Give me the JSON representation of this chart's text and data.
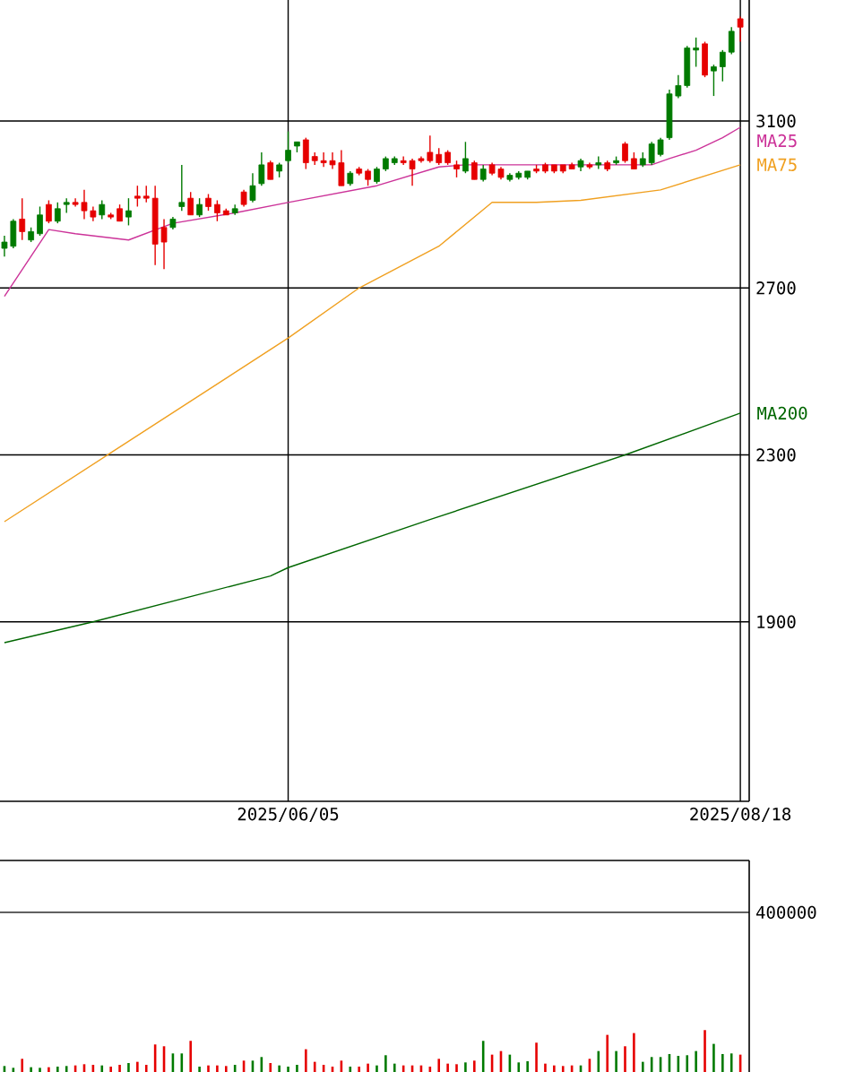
{
  "chart_data": [
    {
      "type": "candlestick",
      "categories": [
        null,
        null,
        null,
        null,
        null,
        null,
        null,
        null,
        null,
        null,
        null,
        null,
        null,
        null,
        null,
        null,
        null,
        null,
        null,
        null,
        null,
        null,
        null,
        null,
        null,
        null,
        null,
        null,
        null,
        null,
        null,
        null,
        "2025/06/05",
        null,
        null,
        null,
        null,
        null,
        null,
        null,
        null,
        null,
        null,
        null,
        null,
        null,
        null,
        null,
        null,
        null,
        null,
        null,
        null,
        null,
        null,
        null,
        null,
        null,
        null,
        null,
        null,
        null,
        null,
        null,
        null,
        null,
        null,
        null,
        null,
        null,
        null,
        null,
        null,
        null,
        null,
        null,
        null,
        null,
        null,
        null,
        null,
        null,
        null,
        "2025/08/18"
      ],
      "ohlc": [
        [
          2795,
          2825,
          2775,
          2810
        ],
        [
          2800,
          2865,
          2795,
          2860
        ],
        [
          2865,
          2915,
          2815,
          2835
        ],
        [
          2815,
          2845,
          2810,
          2835
        ],
        [
          2830,
          2895,
          2825,
          2875
        ],
        [
          2900,
          2910,
          2855,
          2860
        ],
        [
          2860,
          2905,
          2855,
          2890
        ],
        [
          2900,
          2915,
          2880,
          2905
        ],
        [
          2905,
          2915,
          2895,
          2900
        ],
        [
          2905,
          2935,
          2865,
          2885
        ],
        [
          2885,
          2895,
          2860,
          2870
        ],
        [
          2875,
          2910,
          2865,
          2900
        ],
        [
          2875,
          2880,
          2865,
          2870
        ],
        [
          2890,
          2900,
          2860,
          2860
        ],
        [
          2870,
          2915,
          2850,
          2885
        ],
        [
          2920,
          2945,
          2895,
          2915
        ],
        [
          2920,
          2945,
          2905,
          2915
        ],
        [
          2915,
          2945,
          2755,
          2805
        ],
        [
          2845,
          2865,
          2745,
          2810
        ],
        [
          2845,
          2870,
          2840,
          2865
        ],
        [
          2895,
          2995,
          2885,
          2905
        ],
        [
          2915,
          2930,
          2875,
          2875
        ],
        [
          2875,
          2915,
          2870,
          2900
        ],
        [
          2915,
          2925,
          2885,
          2895
        ],
        [
          2900,
          2910,
          2860,
          2880
        ],
        [
          2885,
          2890,
          2875,
          2875
        ],
        [
          2880,
          2900,
          2875,
          2890
        ],
        [
          2930,
          2935,
          2895,
          2900
        ],
        [
          2910,
          2975,
          2905,
          2945
        ],
        [
          2950,
          3025,
          2945,
          2995
        ],
        [
          3000,
          3005,
          2960,
          2960
        ],
        [
          2980,
          3000,
          2965,
          2995
        ],
        [
          3005,
          3075,
          3000,
          3030
        ],
        [
          3040,
          3050,
          3025,
          3050
        ],
        [
          3055,
          3060,
          2985,
          3000
        ],
        [
          3015,
          3025,
          2995,
          3005
        ],
        [
          3005,
          3025,
          2990,
          3000
        ],
        [
          3005,
          3025,
          2985,
          2995
        ],
        [
          3000,
          3030,
          2945,
          2945
        ],
        [
          2950,
          2980,
          2945,
          2975
        ],
        [
          2985,
          2990,
          2970,
          2975
        ],
        [
          2980,
          2985,
          2945,
          2960
        ],
        [
          2955,
          2990,
          2950,
          2985
        ],
        [
          2985,
          3015,
          2980,
          3010
        ],
        [
          3000,
          3015,
          2995,
          3010
        ],
        [
          3005,
          3015,
          2995,
          3000
        ],
        [
          3005,
          3010,
          2945,
          2985
        ],
        [
          3010,
          3015,
          3000,
          3005
        ],
        [
          3025,
          3065,
          3000,
          3005
        ],
        [
          3020,
          3035,
          2995,
          3000
        ],
        [
          3025,
          3030,
          2995,
          3000
        ],
        [
          2995,
          3005,
          2965,
          2985
        ],
        [
          2980,
          3050,
          2975,
          3010
        ],
        [
          3000,
          3005,
          2960,
          2960
        ],
        [
          2960,
          2995,
          2955,
          2985
        ],
        [
          2995,
          3000,
          2970,
          2975
        ],
        [
          2985,
          2990,
          2960,
          2965
        ],
        [
          2960,
          2975,
          2955,
          2970
        ],
        [
          2965,
          2980,
          2960,
          2975
        ],
        [
          2965,
          2980,
          2960,
          2980
        ],
        [
          2985,
          2995,
          2975,
          2980
        ],
        [
          2995,
          3000,
          2975,
          2980
        ],
        [
          2995,
          2995,
          2975,
          2980
        ],
        [
          2995,
          2995,
          2975,
          2980
        ],
        [
          2995,
          3000,
          2985,
          2985
        ],
        [
          2990,
          3010,
          2980,
          3005
        ],
        [
          2995,
          3000,
          2985,
          2990
        ],
        [
          2995,
          3015,
          2985,
          3000
        ],
        [
          3000,
          3005,
          2980,
          2985
        ],
        [
          3000,
          3015,
          2995,
          3005
        ],
        [
          3045,
          3050,
          3000,
          3005
        ],
        [
          3010,
          3025,
          2985,
          2985
        ],
        [
          2995,
          3025,
          2990,
          3010
        ],
        [
          3000,
          3050,
          2995,
          3045
        ],
        [
          3020,
          3060,
          3015,
          3055
        ],
        [
          3060,
          3175,
          3055,
          3165
        ],
        [
          3160,
          3210,
          3155,
          3185
        ],
        [
          3185,
          3280,
          3180,
          3275
        ],
        [
          3270,
          3300,
          3230,
          3275
        ],
        [
          3285,
          3290,
          3205,
          3210
        ],
        [
          3220,
          3235,
          3160,
          3230
        ],
        [
          3230,
          3270,
          3195,
          3265
        ],
        [
          3265,
          3325,
          3260,
          3315
        ],
        [
          3345,
          3350,
          3290,
          3325
        ]
      ],
      "colors": [
        "#007a00",
        "#007a00",
        "#e60000",
        "#007a00",
        "#007a00",
        "#e60000",
        "#007a00",
        "#007a00",
        "#e60000",
        "#e60000",
        "#e60000",
        "#007a00",
        "#e60000",
        "#e60000",
        "#007a00",
        "#e60000",
        "#e60000",
        "#e60000",
        "#e60000",
        "#007a00",
        "#007a00",
        "#e60000",
        "#007a00",
        "#e60000",
        "#e60000",
        "#e60000",
        "#007a00",
        "#e60000",
        "#007a00",
        "#007a00",
        "#e60000",
        "#007a00",
        "#007a00",
        "#007a00",
        "#e60000",
        "#e60000",
        "#e60000",
        "#e60000",
        "#e60000",
        "#007a00",
        "#e60000",
        "#e60000",
        "#007a00",
        "#007a00",
        "#007a00",
        "#e60000",
        "#e60000",
        "#e60000",
        "#e60000",
        "#e60000",
        "#e60000",
        "#e60000",
        "#007a00",
        "#e60000",
        "#007a00",
        "#e60000",
        "#e60000",
        "#007a00",
        "#007a00",
        "#007a00",
        "#e60000",
        "#e60000",
        "#e60000",
        "#e60000",
        "#e60000",
        "#007a00",
        "#e60000",
        "#007a00",
        "#e60000",
        "#007a00",
        "#e60000",
        "#e60000",
        "#007a00",
        "#007a00",
        "#007a00",
        "#007a00",
        "#007a00",
        "#007a00",
        "#007a00",
        "#e60000",
        "#007a00",
        "#007a00",
        "#007a00",
        "#e60000"
      ],
      "series": [
        {
          "name": "MA25",
          "type": "line",
          "color": "#cc3399",
          "values": [
            2680,
            null,
            null,
            null,
            null,
            2840,
            null,
            null,
            2830,
            null,
            null,
            null,
            null,
            null,
            2815,
            null,
            null,
            null,
            null,
            2855,
            null,
            null,
            null,
            null,
            null,
            null,
            2880,
            null,
            null,
            null,
            null,
            null,
            2905,
            null,
            null,
            null,
            null,
            null,
            null,
            null,
            null,
            null,
            2945,
            null,
            null,
            null,
            null,
            null,
            null,
            2990,
            null,
            null,
            2995,
            null,
            null,
            null,
            null,
            null,
            null,
            null,
            null,
            null,
            null,
            null,
            2995,
            null,
            null,
            null,
            null,
            null,
            null,
            null,
            null,
            2995,
            null,
            3010,
            null,
            null,
            3030,
            null,
            null,
            3060,
            null,
            3085
          ]
        },
        {
          "name": "MA75",
          "type": "line",
          "color": "#f0a020",
          "values": [
            2140,
            null,
            null,
            null,
            null,
            null,
            null,
            null,
            null,
            null,
            null,
            null,
            2305,
            null,
            null,
            null,
            null,
            null,
            null,
            null,
            null,
            null,
            null,
            null,
            null,
            null,
            null,
            null,
            null,
            null,
            null,
            null,
            2580,
            null,
            null,
            null,
            null,
            null,
            null,
            null,
            2700,
            null,
            null,
            null,
            null,
            null,
            null,
            null,
            null,
            2800,
            null,
            null,
            null,
            null,
            null,
            2905,
            null,
            null,
            null,
            null,
            2905,
            null,
            null,
            null,
            null,
            2910,
            null,
            null,
            null,
            null,
            null,
            null,
            null,
            null,
            2935,
            null,
            null,
            null,
            null,
            null,
            null,
            null,
            null,
            2995
          ]
        },
        {
          "name": "MA200",
          "type": "line",
          "color": "#006600",
          "values": [
            1850,
            null,
            null,
            null,
            null,
            null,
            null,
            null,
            null,
            null,
            1900,
            null,
            null,
            null,
            null,
            null,
            null,
            null,
            null,
            null,
            null,
            null,
            null,
            null,
            null,
            null,
            null,
            null,
            null,
            null,
            2010,
            null,
            2030,
            null,
            null,
            null,
            null,
            null,
            null,
            null,
            null,
            null,
            null,
            null,
            null,
            null,
            null,
            null,
            2145,
            null,
            null,
            null,
            null,
            null,
            null,
            null,
            null,
            null,
            null,
            null,
            null,
            null,
            null,
            null,
            null,
            null,
            null,
            null,
            null,
            null,
            2300,
            null,
            null,
            null,
            null,
            null,
            null,
            null,
            null,
            null,
            null,
            null,
            null,
            2400
          ]
        }
      ],
      "ylim": [
        1470,
        3390
      ],
      "yticks": [
        1900,
        2300,
        2700,
        3100
      ],
      "grid": true
    },
    {
      "type": "bar",
      "categories": [
        null,
        null,
        null,
        null,
        null,
        null,
        null,
        null,
        null,
        null,
        null,
        null,
        null,
        null,
        null,
        null,
        null,
        null,
        null,
        null,
        null,
        null,
        null,
        null,
        null,
        null,
        null,
        null,
        null,
        null,
        null,
        null,
        null,
        null,
        null,
        null,
        null,
        null,
        null,
        null,
        null,
        null,
        null,
        null,
        null,
        null,
        null,
        null,
        null,
        null,
        null,
        null,
        null,
        null,
        null,
        null,
        null,
        null,
        null,
        null,
        null,
        null,
        null,
        null,
        null,
        null,
        null,
        null,
        null,
        null,
        null,
        null,
        null,
        null,
        null,
        null,
        null,
        null,
        null,
        null,
        null,
        null,
        null,
        null
      ],
      "values": [
        15000,
        10500,
        33000,
        12000,
        10500,
        12000,
        13500,
        15000,
        16500,
        19500,
        18000,
        16500,
        13500,
        18000,
        22500,
        25500,
        18000,
        69000,
        64500,
        46500,
        46500,
        78000,
        13500,
        16500,
        16500,
        15000,
        18000,
        28500,
        28500,
        37500,
        22500,
        16500,
        13500,
        18000,
        57000,
        25500,
        18000,
        13500,
        28500,
        13500,
        13500,
        21000,
        16500,
        42000,
        21000,
        16500,
        16500,
        16500,
        13500,
        33000,
        21000,
        19500,
        24000,
        28500,
        78000,
        43500,
        52500,
        43500,
        24000,
        27000,
        73500,
        21000,
        16500,
        15000,
        16500,
        16500,
        33000,
        52500,
        93000,
        52500,
        64500,
        97500,
        25500,
        37500,
        37500,
        45000,
        40500,
        42000,
        52500,
        105000,
        70500,
        45000,
        46500,
        43500
      ],
      "colors": [
        "#007a00",
        "#007a00",
        "#e60000",
        "#007a00",
        "#007a00",
        "#e60000",
        "#007a00",
        "#007a00",
        "#e60000",
        "#e60000",
        "#e60000",
        "#007a00",
        "#e60000",
        "#e60000",
        "#007a00",
        "#e60000",
        "#e60000",
        "#e60000",
        "#e60000",
        "#007a00",
        "#007a00",
        "#e60000",
        "#007a00",
        "#e60000",
        "#e60000",
        "#e60000",
        "#007a00",
        "#e60000",
        "#007a00",
        "#007a00",
        "#e60000",
        "#007a00",
        "#007a00",
        "#007a00",
        "#e60000",
        "#e60000",
        "#e60000",
        "#e60000",
        "#e60000",
        "#007a00",
        "#e60000",
        "#e60000",
        "#007a00",
        "#007a00",
        "#007a00",
        "#e60000",
        "#e60000",
        "#e60000",
        "#e60000",
        "#e60000",
        "#e60000",
        "#e60000",
        "#007a00",
        "#e60000",
        "#007a00",
        "#e60000",
        "#e60000",
        "#007a00",
        "#007a00",
        "#007a00",
        "#e60000",
        "#e60000",
        "#e60000",
        "#e60000",
        "#e60000",
        "#007a00",
        "#e60000",
        "#007a00",
        "#e60000",
        "#007a00",
        "#e60000",
        "#e60000",
        "#007a00",
        "#007a00",
        "#007a00",
        "#007a00",
        "#007a00",
        "#007a00",
        "#007a00",
        "#e60000",
        "#007a00",
        "#007a00",
        "#007a00",
        "#e60000"
      ],
      "ylim": [
        0,
        530000
      ],
      "yticks": [
        400000
      ],
      "grid": "y",
      "tick_labels": "y"
    }
  ]
}
